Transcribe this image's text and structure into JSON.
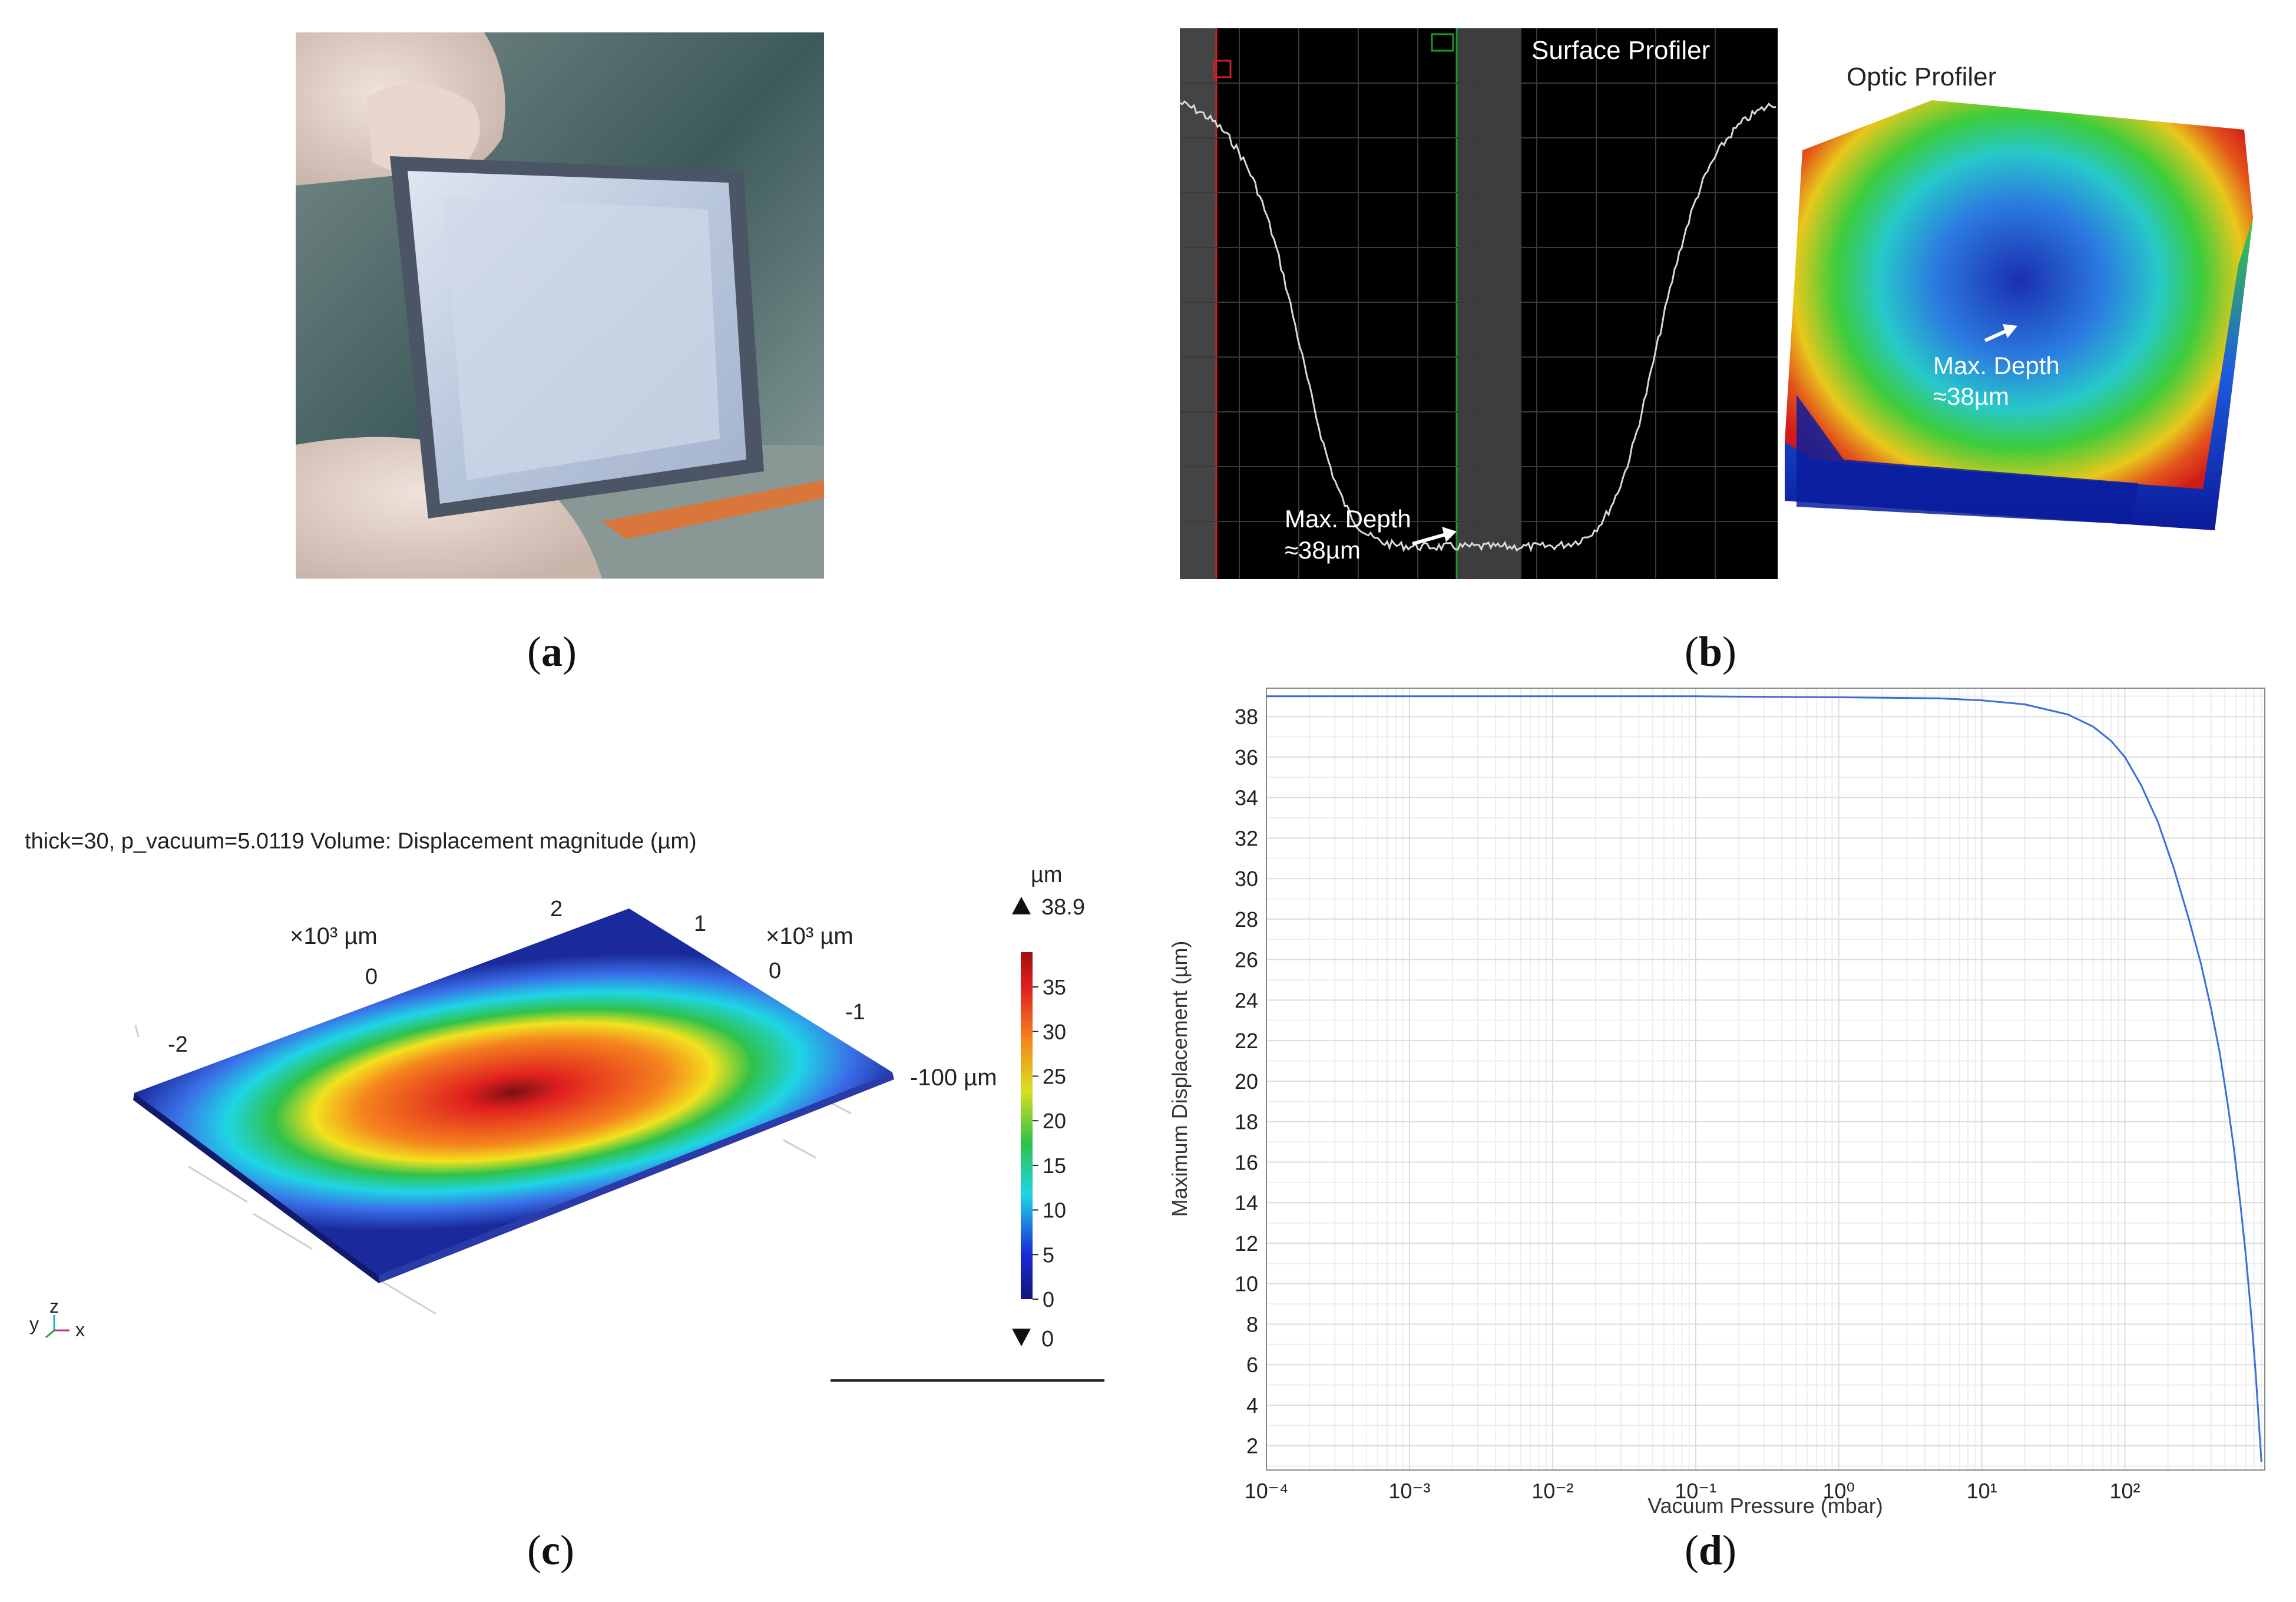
{
  "captions": {
    "a": "a",
    "b": "b",
    "c": "c",
    "d": "d"
  },
  "panel_b": {
    "surface_title": "Surface Profiler",
    "optic_title": "Optic Profiler",
    "surface_annot_line1": "Max. Depth",
    "surface_annot_line2": "≈38µm",
    "optic_annot_line1": "Max. Depth",
    "optic_annot_line2": "≈38µm"
  },
  "panel_c": {
    "header": "thick=30, p_vacuum=5.0119   Volume: Displacement magnitude (µm)",
    "axis_left_unit": "×10³ µm",
    "axis_right_unit": "×10³ µm",
    "axis_left_ticks": [
      "2",
      "0",
      "-2"
    ],
    "axis_right_ticks": [
      "1",
      "0",
      "-1"
    ],
    "z_label": "-100 µm",
    "colorbar_unit": "µm",
    "colorbar_max": "38.9",
    "colorbar_min": "0",
    "colorbar_ticks": [
      "35",
      "30",
      "25",
      "20",
      "15",
      "10",
      "5",
      "0"
    ],
    "triad": {
      "y": "y",
      "z": "z",
      "x": "x"
    },
    "colors": {
      "red": "#cc1a1a",
      "yellow": "#f2e21e",
      "green": "#2fc24a",
      "cyan": "#1fd5e5",
      "blue": "#1a2a9c",
      "navy": "#121a6b"
    }
  },
  "chart_data": {
    "type": "line",
    "xlabel": "Vacuum Pressure (mbar)",
    "ylabel": "Maximum Displacement (µm)",
    "xscale": "log",
    "xlim": [
      0.0001,
      950
    ],
    "ylim": [
      0.8,
      39.4
    ],
    "x_tick_labels": [
      "10⁻⁴",
      "10⁻³",
      "10⁻²",
      "10⁻¹",
      "10⁰",
      "10¹",
      "10²"
    ],
    "x_ticks": [
      0.0001,
      0.001,
      0.01,
      0.1,
      1,
      10,
      100
    ],
    "y_ticks": [
      2,
      4,
      6,
      8,
      10,
      12,
      14,
      16,
      18,
      20,
      22,
      24,
      26,
      28,
      30,
      32,
      34,
      36,
      38
    ],
    "grid": true,
    "line_color": "#3a6fd8",
    "series": [
      {
        "x": [
          0.0001,
          0.001,
          0.01,
          0.1,
          1,
          5,
          10,
          20,
          40,
          60,
          80,
          100,
          130,
          170,
          220,
          280,
          340,
          400,
          460,
          520,
          580,
          640,
          700,
          760,
          820,
          870,
          900
        ],
        "y": [
          39.0,
          39.0,
          39.0,
          39.0,
          38.95,
          38.9,
          38.8,
          38.6,
          38.1,
          37.5,
          36.8,
          36.0,
          34.6,
          32.8,
          30.5,
          28.0,
          25.8,
          23.6,
          21.4,
          19.0,
          16.6,
          14.0,
          11.4,
          8.6,
          5.6,
          2.8,
          1.2
        ]
      }
    ]
  }
}
